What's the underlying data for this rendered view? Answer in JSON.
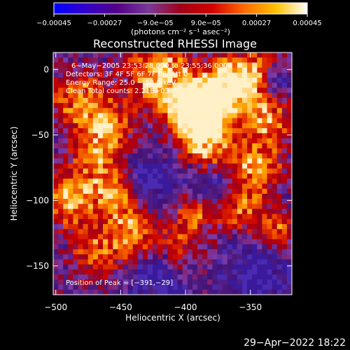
{
  "chart_data": {
    "type": "heatmap",
    "title": "Reconstructed RHESSI Image",
    "xlabel": "Heliocentric X (arcsec)",
    "ylabel": "Heliocentric Y (arcsec)",
    "xlim": [
      -502,
      -318
    ],
    "ylim": [
      -172,
      13
    ],
    "x_ticks": [
      {
        "value": -500,
        "label": "−500"
      },
      {
        "value": -450,
        "label": "−450"
      },
      {
        "value": -400,
        "label": "−400"
      },
      {
        "value": -350,
        "label": "−350"
      }
    ],
    "y_ticks": [
      {
        "value": 0,
        "label": "0"
      },
      {
        "value": -50,
        "label": "−50"
      },
      {
        "value": -100,
        "label": "−100"
      },
      {
        "value": -150,
        "label": "−150"
      }
    ],
    "annotations": [
      "6−May−2005 23:53:28.000 to 23:55:36.000",
      "Detectors: 3F 4F 5F 6F 7F 8F, Att 0",
      "Energy Range: 25.0 − 50.0 keV",
      "Clean     Total counts: 2.21E+03"
    ],
    "peak_label": "Position of Peak = [−391,−29]",
    "peak": [
      -391,
      -29
    ],
    "colorbar": {
      "range": [
        -0.00045,
        0.00045
      ],
      "ticks": [
        {
          "value": -0.00045,
          "label": "−0.00045"
        },
        {
          "value": -0.00027,
          "label": "−0.00027"
        },
        {
          "value": -9e-05,
          "label": "−9.0e−05"
        },
        {
          "value": 9e-05,
          "label": "9.0e−05"
        },
        {
          "value": 0.00027,
          "label": "0.00027"
        },
        {
          "value": 0.00045,
          "label": "0.00045"
        }
      ],
      "units_label": "(photons cm⁻² s⁻¹ asec⁻²)",
      "stops": [
        "#0000ff",
        "#3300cc",
        "#550088",
        "#7a3a9a",
        "#a00018",
        "#d40000",
        "#ff6a00",
        "#ffc000",
        "#ffffff"
      ]
    }
  },
  "footer": {
    "timestamp": "29−Apr−2022 18:22"
  }
}
